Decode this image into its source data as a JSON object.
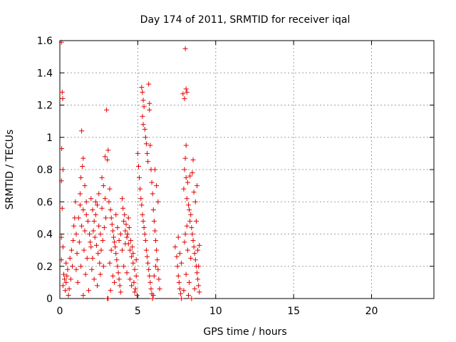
{
  "chart_data": {
    "type": "scatter",
    "title": "Day 174 of 2011, SRMTID for receiver iqal",
    "xlabel": "GPS time / hours",
    "ylabel": "SRMTID / TECUs",
    "xlim": [
      0,
      24
    ],
    "ylim": [
      0,
      1.6
    ],
    "xticks": [
      0,
      5,
      10,
      15,
      20
    ],
    "xtick_labels": [
      "0",
      "5",
      "10",
      "15",
      "20"
    ],
    "yticks": [
      0,
      0.2,
      0.4,
      0.6,
      0.8,
      1,
      1.2,
      1.4,
      1.6
    ],
    "ytick_labels": [
      "0",
      "0.2",
      "0.4",
      "0.6",
      "0.8",
      "1",
      "1.2",
      "1.4",
      "1.6"
    ],
    "grid": true,
    "marker": "+",
    "color": "#e00000",
    "series": [
      {
        "points": [
          [
            0.1,
            1.59
          ],
          [
            0.15,
            1.28
          ],
          [
            0.18,
            1.24
          ],
          [
            0.12,
            0.93
          ],
          [
            0.2,
            0.8
          ],
          [
            0.1,
            0.73
          ],
          [
            0.15,
            0.56
          ],
          [
            0.1,
            0.38
          ],
          [
            0.2,
            0.32
          ],
          [
            0.1,
            0.24
          ],
          [
            0.25,
            0.15
          ],
          [
            0.3,
            0.12
          ],
          [
            0.2,
            0.08
          ],
          [
            0.35,
            0.05
          ],
          [
            0.4,
            0.1
          ],
          [
            0.5,
            0.18
          ],
          [
            0.45,
            0.14
          ],
          [
            0.6,
            0.06
          ],
          [
            0.55,
            0.02
          ],
          [
            0.7,
            0.12
          ],
          [
            0.8,
            0.2
          ],
          [
            0.75,
            0.3
          ],
          [
            0.9,
            0.45
          ],
          [
            0.95,
            0.5
          ],
          [
            1.0,
            0.6
          ],
          [
            1.05,
            0.4
          ],
          [
            1.1,
            0.28
          ],
          [
            0.85,
            0.36
          ],
          [
            0.65,
            0.25
          ],
          [
            0.4,
            0.22
          ],
          [
            1.4,
            1.04
          ],
          [
            1.5,
            0.87
          ],
          [
            1.45,
            0.82
          ],
          [
            1.35,
            0.75
          ],
          [
            1.6,
            0.7
          ],
          [
            1.3,
            0.65
          ],
          [
            1.5,
            0.55
          ],
          [
            1.7,
            0.6
          ],
          [
            1.2,
            0.5
          ],
          [
            1.8,
            0.48
          ],
          [
            1.6,
            0.42
          ],
          [
            1.4,
            0.45
          ],
          [
            1.9,
            0.4
          ],
          [
            1.25,
            0.35
          ],
          [
            1.55,
            0.3
          ],
          [
            1.75,
            0.25
          ],
          [
            1.35,
            0.2
          ],
          [
            1.65,
            0.15
          ],
          [
            1.15,
            0.1
          ],
          [
            1.85,
            0.05
          ],
          [
            1.5,
            0.02
          ],
          [
            1.95,
            0.35
          ],
          [
            1.05,
            0.18
          ],
          [
            1.7,
            0.52
          ],
          [
            1.3,
            0.58
          ],
          [
            2.0,
            0.62
          ],
          [
            2.1,
            0.55
          ],
          [
            2.2,
            0.48
          ],
          [
            2.3,
            0.52
          ],
          [
            2.4,
            0.58
          ],
          [
            2.5,
            0.45
          ],
          [
            2.6,
            0.4
          ],
          [
            2.7,
            0.75
          ],
          [
            2.8,
            0.7
          ],
          [
            2.9,
            0.88
          ],
          [
            2.15,
            0.42
          ],
          [
            2.25,
            0.38
          ],
          [
            2.35,
            0.33
          ],
          [
            2.45,
            0.28
          ],
          [
            2.55,
            0.22
          ],
          [
            2.65,
            0.3
          ],
          [
            2.75,
            0.36
          ],
          [
            2.85,
            0.44
          ],
          [
            2.95,
            0.5
          ],
          [
            2.05,
            0.18
          ],
          [
            2.2,
            0.12
          ],
          [
            2.4,
            0.08
          ],
          [
            2.6,
            0.15
          ],
          [
            2.8,
            0.2
          ],
          [
            2.0,
            0.32
          ],
          [
            2.3,
            0.6
          ],
          [
            2.5,
            0.65
          ],
          [
            2.7,
            0.56
          ],
          [
            2.9,
            0.62
          ],
          [
            2.1,
            0.25
          ],
          [
            3.0,
            1.17
          ],
          [
            3.1,
            0.92
          ],
          [
            3.05,
            0.86
          ],
          [
            3.2,
            0.68
          ],
          [
            3.15,
            0.6
          ],
          [
            3.25,
            0.55
          ],
          [
            3.3,
            0.5
          ],
          [
            3.35,
            0.46
          ],
          [
            3.4,
            0.42
          ],
          [
            3.45,
            0.38
          ],
          [
            3.5,
            0.35
          ],
          [
            3.55,
            0.32
          ],
          [
            3.6,
            0.28
          ],
          [
            3.65,
            0.24
          ],
          [
            3.7,
            0.2
          ],
          [
            3.75,
            0.16
          ],
          [
            3.8,
            0.12
          ],
          [
            3.85,
            0.08
          ],
          [
            3.9,
            0.04
          ],
          [
            3.05,
            0.0
          ],
          [
            3.1,
            0.0
          ],
          [
            3.2,
            0.22
          ],
          [
            3.3,
            0.3
          ],
          [
            3.5,
            0.1
          ],
          [
            3.7,
            0.44
          ],
          [
            3.6,
            0.52
          ],
          [
            3.4,
            0.14
          ],
          [
            3.8,
            0.36
          ],
          [
            3.9,
            0.4
          ],
          [
            3.25,
            0.05
          ],
          [
            4.0,
            0.62
          ],
          [
            4.1,
            0.48
          ],
          [
            4.2,
            0.42
          ],
          [
            4.3,
            0.38
          ],
          [
            4.4,
            0.34
          ],
          [
            4.5,
            0.3
          ],
          [
            4.6,
            0.26
          ],
          [
            4.7,
            0.22
          ],
          [
            4.8,
            0.18
          ],
          [
            4.9,
            0.14
          ],
          [
            4.05,
            0.56
          ],
          [
            4.15,
            0.52
          ],
          [
            4.25,
            0.46
          ],
          [
            4.35,
            0.4
          ],
          [
            4.45,
            0.44
          ],
          [
            4.55,
            0.36
          ],
          [
            4.65,
            0.32
          ],
          [
            4.75,
            0.1
          ],
          [
            4.85,
            0.06
          ],
          [
            4.95,
            0.02
          ],
          [
            4.1,
            0.2
          ],
          [
            4.3,
            0.16
          ],
          [
            4.5,
            0.12
          ],
          [
            4.7,
            0.28
          ],
          [
            4.9,
            0.24
          ],
          [
            4.2,
            0.34
          ],
          [
            4.4,
            0.5
          ],
          [
            4.6,
            0.08
          ],
          [
            4.8,
            0.04
          ],
          [
            4.0,
            0.3
          ],
          [
            5.0,
            0.9
          ],
          [
            5.05,
            0.82
          ],
          [
            5.1,
            0.75
          ],
          [
            5.15,
            0.68
          ],
          [
            5.2,
            0.62
          ],
          [
            5.25,
            0.58
          ],
          [
            5.3,
            0.52
          ],
          [
            5.35,
            0.48
          ],
          [
            5.4,
            0.44
          ],
          [
            5.45,
            0.4
          ],
          [
            5.5,
            0.36
          ],
          [
            5.55,
            0.3
          ],
          [
            5.6,
            0.26
          ],
          [
            5.65,
            0.22
          ],
          [
            5.7,
            0.18
          ],
          [
            5.75,
            0.14
          ],
          [
            5.8,
            0.1
          ],
          [
            5.85,
            0.06
          ],
          [
            5.9,
            0.03
          ],
          [
            5.95,
            0.0
          ],
          [
            5.25,
            1.31
          ],
          [
            5.3,
            1.28
          ],
          [
            5.35,
            1.23
          ],
          [
            5.4,
            1.19
          ],
          [
            5.3,
            1.13
          ],
          [
            5.35,
            1.08
          ],
          [
            5.45,
            1.05
          ],
          [
            5.5,
            1.0
          ],
          [
            5.55,
            0.96
          ],
          [
            5.6,
            0.9
          ],
          [
            5.65,
            0.85
          ],
          [
            5.7,
            1.33
          ],
          [
            5.75,
            1.21
          ],
          [
            5.75,
            1.17
          ],
          [
            5.8,
            0.95
          ],
          [
            5.85,
            0.8
          ],
          [
            5.9,
            0.72
          ],
          [
            5.95,
            0.65
          ],
          [
            6.0,
            0.55
          ],
          [
            6.05,
            0.48
          ],
          [
            6.1,
            0.42
          ],
          [
            6.15,
            0.36
          ],
          [
            6.2,
            0.3
          ],
          [
            6.25,
            0.24
          ],
          [
            6.3,
            0.18
          ],
          [
            6.35,
            0.12
          ],
          [
            6.4,
            0.06
          ],
          [
            6.0,
            0.02
          ],
          [
            6.1,
            0.8
          ],
          [
            6.2,
            0.7
          ],
          [
            6.3,
            0.6
          ],
          [
            6.05,
            0.14
          ],
          [
            6.15,
            0.2
          ],
          [
            7.4,
            0.32
          ],
          [
            7.5,
            0.26
          ],
          [
            7.55,
            0.2
          ],
          [
            7.6,
            0.14
          ],
          [
            7.65,
            0.1
          ],
          [
            7.7,
            0.06
          ],
          [
            7.75,
            0.03
          ],
          [
            7.8,
            0.0
          ],
          [
            7.6,
            0.38
          ],
          [
            7.7,
            0.28
          ],
          [
            7.8,
            0.22
          ],
          [
            7.9,
            1.27
          ],
          [
            8.0,
            1.24
          ],
          [
            8.1,
            1.3
          ],
          [
            8.15,
            1.28
          ],
          [
            8.05,
            1.55
          ],
          [
            8.1,
            0.95
          ],
          [
            8.05,
            0.87
          ],
          [
            8.0,
            0.8
          ],
          [
            8.1,
            0.75
          ],
          [
            8.2,
            0.72
          ],
          [
            7.95,
            0.68
          ],
          [
            8.15,
            0.62
          ],
          [
            8.25,
            0.58
          ],
          [
            8.3,
            0.55
          ],
          [
            8.4,
            0.52
          ],
          [
            8.35,
            0.48
          ],
          [
            8.45,
            0.44
          ],
          [
            8.5,
            0.4
          ],
          [
            8.55,
            0.36
          ],
          [
            8.6,
            0.32
          ],
          [
            8.65,
            0.28
          ],
          [
            8.7,
            0.24
          ],
          [
            8.75,
            0.2
          ],
          [
            8.8,
            0.16
          ],
          [
            8.85,
            0.12
          ],
          [
            8.9,
            0.08
          ],
          [
            8.95,
            0.04
          ],
          [
            8.0,
            0.35
          ],
          [
            8.2,
            0.3
          ],
          [
            8.4,
            0.25
          ],
          [
            8.5,
            0.78
          ],
          [
            8.6,
            0.66
          ],
          [
            8.7,
            0.6
          ],
          [
            8.8,
            0.7
          ],
          [
            8.9,
            0.2
          ],
          [
            8.3,
            0.1
          ],
          [
            8.1,
            0.15
          ],
          [
            7.95,
            0.05
          ],
          [
            8.25,
            0.02
          ],
          [
            8.45,
            0.0
          ],
          [
            8.65,
            0.06
          ],
          [
            8.85,
            0.3
          ],
          [
            8.75,
            0.48
          ],
          [
            8.55,
            0.86
          ],
          [
            8.35,
            0.76
          ],
          [
            8.95,
            0.33
          ],
          [
            8.15,
            0.45
          ],
          [
            8.05,
            0.4
          ]
        ]
      }
    ]
  }
}
